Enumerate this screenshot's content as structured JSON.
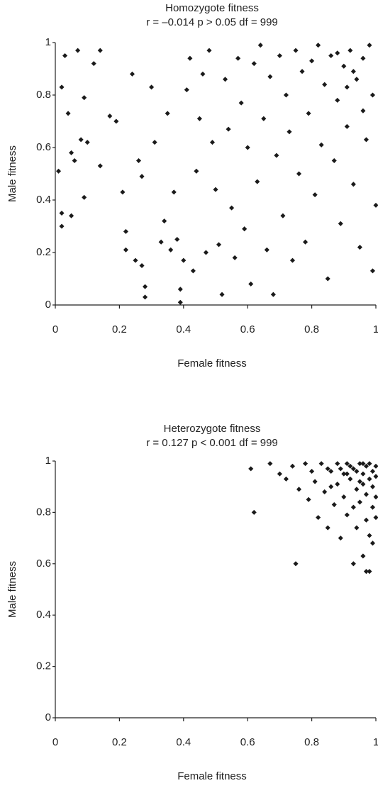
{
  "chart_data": [
    {
      "type": "scatter",
      "title": "Homozygote fitness",
      "subtitle": "r = –0.014 p > 0.05  df = 999",
      "xlabel": "Female fitness",
      "ylabel": "Male fitness",
      "color": "#1a1a1a",
      "xlim": [
        0,
        1
      ],
      "ylim": [
        0,
        1
      ],
      "xticks": [
        0,
        0.2,
        0.4,
        0.6,
        0.8,
        1
      ],
      "yticks": [
        0,
        0.2,
        0.4,
        0.6,
        0.8,
        1
      ],
      "x": [
        0.01,
        0.02,
        0.02,
        0.03,
        0.02,
        0.04,
        0.05,
        0.05,
        0.06,
        0.07,
        0.08,
        0.09,
        0.09,
        0.1,
        0.12,
        0.14,
        0.14,
        0.17,
        0.19,
        0.21,
        0.22,
        0.22,
        0.24,
        0.25,
        0.26,
        0.27,
        0.27,
        0.28,
        0.28,
        0.3,
        0.31,
        0.33,
        0.34,
        0.35,
        0.36,
        0.37,
        0.38,
        0.39,
        0.39,
        0.4,
        0.41,
        0.42,
        0.43,
        0.44,
        0.45,
        0.46,
        0.47,
        0.48,
        0.49,
        0.5,
        0.51,
        0.52,
        0.53,
        0.54,
        0.55,
        0.56,
        0.57,
        0.58,
        0.59,
        0.6,
        0.61,
        0.62,
        0.63,
        0.64,
        0.65,
        0.66,
        0.67,
        0.68,
        0.69,
        0.7,
        0.71,
        0.72,
        0.73,
        0.74,
        0.75,
        0.76,
        0.77,
        0.78,
        0.79,
        0.8,
        0.81,
        0.82,
        0.83,
        0.84,
        0.85,
        0.86,
        0.87,
        0.88,
        0.89,
        0.9,
        0.91,
        0.92,
        0.93,
        0.94,
        0.95,
        0.96,
        0.97,
        0.98,
        0.99,
        1.0,
        0.96,
        0.93,
        0.88,
        0.99,
        0.91
      ],
      "y": [
        0.51,
        0.35,
        0.3,
        0.95,
        0.83,
        0.73,
        0.58,
        0.34,
        0.55,
        0.97,
        0.63,
        0.79,
        0.41,
        0.62,
        0.92,
        0.97,
        0.53,
        0.72,
        0.7,
        0.43,
        0.28,
        0.21,
        0.88,
        0.17,
        0.55,
        0.49,
        0.15,
        0.07,
        0.03,
        0.83,
        0.62,
        0.24,
        0.32,
        0.73,
        0.21,
        0.43,
        0.25,
        0.06,
        0.01,
        0.17,
        0.82,
        0.94,
        0.13,
        0.51,
        0.71,
        0.88,
        0.2,
        0.97,
        0.62,
        0.44,
        0.23,
        0.04,
        0.86,
        0.67,
        0.37,
        0.18,
        0.94,
        0.77,
        0.29,
        0.6,
        0.08,
        0.92,
        0.47,
        0.99,
        0.71,
        0.21,
        0.87,
        0.04,
        0.57,
        0.95,
        0.34,
        0.8,
        0.66,
        0.17,
        0.97,
        0.5,
        0.89,
        0.24,
        0.73,
        0.93,
        0.42,
        0.99,
        0.61,
        0.84,
        0.1,
        0.95,
        0.55,
        0.78,
        0.31,
        0.91,
        0.68,
        0.97,
        0.46,
        0.86,
        0.22,
        0.94,
        0.63,
        0.99,
        0.8,
        0.38,
        0.74,
        0.89,
        0.96,
        0.13,
        0.83
      ]
    },
    {
      "type": "scatter",
      "title": "Heterozygote fitness",
      "subtitle": "r = 0.127 p < 0.001  df = 999",
      "xlabel": "Female fitness",
      "ylabel": "Male fitness",
      "color": "#1a1a1a",
      "xlim": [
        0,
        1
      ],
      "ylim": [
        0,
        1
      ],
      "xticks": [
        0,
        0.2,
        0.4,
        0.6,
        0.8,
        1
      ],
      "yticks": [
        0,
        0.2,
        0.4,
        0.6,
        0.8,
        1
      ],
      "x": [
        0.61,
        0.62,
        0.67,
        0.7,
        0.72,
        0.74,
        0.75,
        0.76,
        0.78,
        0.79,
        0.8,
        0.81,
        0.82,
        0.83,
        0.84,
        0.85,
        0.86,
        0.87,
        0.88,
        0.88,
        0.89,
        0.9,
        0.9,
        0.91,
        0.91,
        0.92,
        0.93,
        0.93,
        0.94,
        0.94,
        0.95,
        0.95,
        0.96,
        0.96,
        0.96,
        0.97,
        0.97,
        0.97,
        0.98,
        0.98,
        0.98,
        0.99,
        0.99,
        0.99,
        1.0,
        1.0,
        1.0,
        0.97,
        0.92,
        0.89,
        0.95,
        0.98,
        0.94,
        0.99,
        0.86,
        0.93,
        1.0,
        0.96,
        0.91,
        0.85
      ],
      "y": [
        0.97,
        0.8,
        0.99,
        0.95,
        0.93,
        0.98,
        0.6,
        0.89,
        0.99,
        0.85,
        0.96,
        0.92,
        0.78,
        0.99,
        0.88,
        0.74,
        0.96,
        0.83,
        0.99,
        0.91,
        0.7,
        0.95,
        0.86,
        0.99,
        0.79,
        0.93,
        0.6,
        0.97,
        0.89,
        0.74,
        0.99,
        0.84,
        0.95,
        0.63,
        0.91,
        0.98,
        0.57,
        0.87,
        0.93,
        0.57,
        0.99,
        0.96,
        0.82,
        0.9,
        0.98,
        0.94,
        0.86,
        0.77,
        0.98,
        0.97,
        0.92,
        0.71,
        0.96,
        0.68,
        0.9,
        0.82,
        0.78,
        0.99,
        0.95,
        0.97
      ]
    }
  ]
}
